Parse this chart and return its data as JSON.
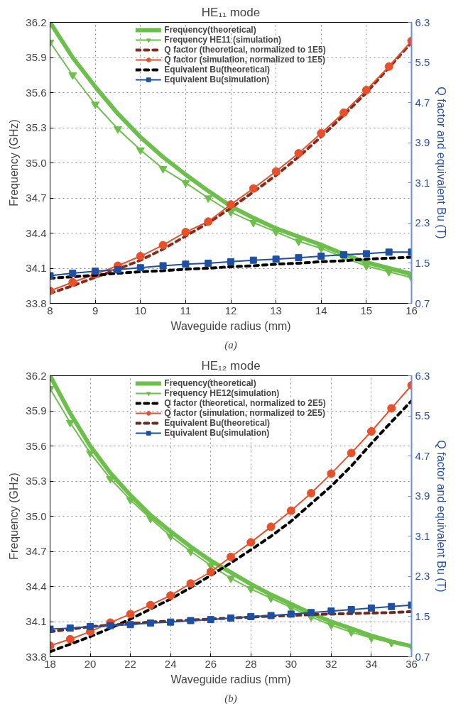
{
  "chart_data": [
    {
      "type": "line",
      "title": "HE₁₁ mode",
      "xlabel": "Waveguide radius (mm)",
      "ylabel": "Frequency (GHz)",
      "y2label": "Q factor and equivalent Bu (T)",
      "annotations": [
        "(a)"
      ],
      "x": [
        8,
        8.5,
        9,
        9.5,
        10,
        10.5,
        11,
        11.5,
        12,
        12.5,
        13,
        13.5,
        14,
        14.5,
        15,
        15.5,
        16
      ],
      "xlim": [
        8,
        16
      ],
      "xticks": [
        8,
        9,
        10,
        11,
        12,
        13,
        14,
        15,
        16
      ],
      "ylim": [
        33.8,
        36.2
      ],
      "yticks": [
        33.8,
        34.1,
        34.4,
        34.7,
        {
          "value": 35,
          "label": "35.0"
        },
        35.3,
        35.6,
        35.9,
        36.2
      ],
      "y2lim": [
        0.7,
        6.3
      ],
      "y2ticks": [
        0.7,
        1.5,
        2.3,
        3.1,
        3.9,
        4.7,
        5.5,
        6.3
      ],
      "grid": true,
      "legend": "top",
      "series": [
        {
          "name": "Frequency(theoretical)",
          "color": "#6cbf4a",
          "marker": "none",
          "line_style": "solid",
          "values": [
            36.2,
            35.9,
            35.65,
            35.42,
            35.22,
            35.05,
            34.9,
            34.76,
            34.63,
            34.53,
            34.44,
            34.37,
            34.3,
            34.22,
            34.15,
            34.1,
            34.05
          ]
        },
        {
          "name": "Frequency HE11 (simulation)",
          "color": "#6cbf4a",
          "marker": "triangle",
          "line_style": "solid",
          "values": [
            36.03,
            35.75,
            35.5,
            35.29,
            35.11,
            34.95,
            34.83,
            34.7,
            34.58,
            34.49,
            34.41,
            34.33,
            34.27,
            34.19,
            34.12,
            34.07,
            34.02
          ]
        },
        {
          "name": "Q factor (theoretical, normalized to 1E5)",
          "color": "#8b2a1a",
          "marker": "none",
          "line_style": "dashed",
          "axis": "y2",
          "values": [
            0.9,
            1.05,
            1.22,
            1.38,
            1.56,
            1.78,
            2.04,
            2.3,
            2.6,
            2.92,
            3.25,
            3.62,
            4.02,
            4.45,
            4.9,
            5.4,
            5.9
          ]
        },
        {
          "name": "Q factor (simulation, normalized to 1E5)",
          "color": "#e8502a",
          "marker": "circle",
          "line_style": "solid",
          "axis": "y2",
          "values": [
            0.95,
            1.12,
            1.28,
            1.45,
            1.64,
            1.86,
            2.12,
            2.33,
            2.67,
            2.99,
            3.33,
            3.69,
            4.09,
            4.5,
            4.95,
            5.42,
            5.93
          ]
        },
        {
          "name": "Equivalent Bu(theoretical)",
          "color": "#000000",
          "marker": "none",
          "line_style": "dashed",
          "axis": "y2",
          "values": [
            1.2,
            1.23,
            1.26,
            1.3,
            1.33,
            1.35,
            1.38,
            1.4,
            1.43,
            1.45,
            1.48,
            1.5,
            1.53,
            1.55,
            1.58,
            1.6,
            1.62
          ]
        },
        {
          "name": "Equivalent Bu(simulation)",
          "color": "#1f4fa0",
          "marker": "square",
          "line_style": "solid",
          "axis": "y2",
          "values": [
            1.25,
            1.3,
            1.34,
            1.37,
            1.41,
            1.45,
            1.48,
            1.5,
            1.53,
            1.56,
            1.58,
            1.61,
            1.64,
            1.67,
            1.69,
            1.72,
            1.72
          ]
        }
      ]
    },
    {
      "type": "line",
      "title": "HE₁₂ mode",
      "xlabel": "Waveguide radius (mm)",
      "ylabel": "Frequency (GHz)",
      "y2label": "Q factor and equivalent Bu (T)",
      "annotations": [
        "(b)"
      ],
      "x": [
        18,
        19,
        20,
        21,
        22,
        23,
        24,
        25,
        26,
        27,
        28,
        29,
        30,
        31,
        32,
        33,
        34,
        35,
        36
      ],
      "xlim": [
        18,
        36
      ],
      "xticks": [
        18,
        20,
        22,
        24,
        26,
        28,
        30,
        32,
        34,
        36
      ],
      "ylim": [
        33.8,
        36.2
      ],
      "yticks": [
        33.8,
        34.1,
        34.4,
        34.7,
        {
          "value": 35,
          "label": "35.0"
        },
        35.3,
        35.6,
        35.9,
        36.2
      ],
      "y2lim": [
        0.7,
        6.3
      ],
      "y2ticks": [
        0.7,
        1.5,
        2.3,
        3.1,
        3.9,
        4.7,
        5.5,
        6.3
      ],
      "grid": true,
      "legend": "top",
      "series": [
        {
          "name": "Frequency(theoretical)",
          "color": "#6cbf4a",
          "marker": "none",
          "line_style": "solid",
          "values": [
            36.2,
            35.88,
            35.6,
            35.37,
            35.18,
            35.01,
            34.87,
            34.74,
            34.62,
            34.52,
            34.42,
            34.33,
            34.25,
            34.17,
            34.1,
            34.04,
            33.98,
            33.93,
            33.89
          ]
        },
        {
          "name": "Frequency HE12(simulation)",
          "color": "#6cbf4a",
          "marker": "triangle",
          "line_style": "solid",
          "values": [
            36.09,
            35.8,
            35.54,
            35.32,
            35.14,
            34.98,
            34.83,
            34.7,
            34.58,
            34.47,
            34.38,
            34.3,
            34.22,
            34.14,
            34.07,
            34.01,
            33.96,
            33.92,
            33.89
          ]
        },
        {
          "name": "Q factor (theoretical, normalized to 2E5)",
          "color": "#000000",
          "marker": "none",
          "line_style": "dashed",
          "axis": "y2",
          "values": [
            0.8,
            0.95,
            1.1,
            1.27,
            1.45,
            1.65,
            1.85,
            2.08,
            2.32,
            2.57,
            2.83,
            3.1,
            3.4,
            3.75,
            4.1,
            4.5,
            4.95,
            5.38,
            5.8
          ]
        },
        {
          "name": "Q factor (simulation, normalized to 2E5)",
          "color": "#e8502a",
          "marker": "circle",
          "line_style": "solid",
          "axis": "y2",
          "values": [
            0.92,
            1.05,
            1.2,
            1.38,
            1.55,
            1.73,
            1.92,
            2.16,
            2.39,
            2.69,
            2.98,
            3.29,
            3.61,
            3.96,
            4.35,
            4.76,
            5.19,
            5.65,
            6.11
          ]
        },
        {
          "name": "Equivalent Bu(theoretical)",
          "color": "#6b2a1a",
          "marker": "none",
          "line_style": "dashed",
          "axis": "y2",
          "values": [
            1.2,
            1.25,
            1.3,
            1.33,
            1.36,
            1.39,
            1.41,
            1.43,
            1.45,
            1.47,
            1.49,
            1.51,
            1.52,
            1.54,
            1.55,
            1.56,
            1.57,
            1.58,
            1.6
          ]
        },
        {
          "name": "Equivalent Bu(simulation)",
          "color": "#1f4fa0",
          "marker": "square",
          "line_style": "solid",
          "axis": "y2",
          "values": [
            1.25,
            1.27,
            1.3,
            1.32,
            1.34,
            1.37,
            1.39,
            1.42,
            1.44,
            1.47,
            1.5,
            1.52,
            1.55,
            1.58,
            1.61,
            1.64,
            1.67,
            1.7,
            1.73
          ]
        }
      ]
    }
  ]
}
